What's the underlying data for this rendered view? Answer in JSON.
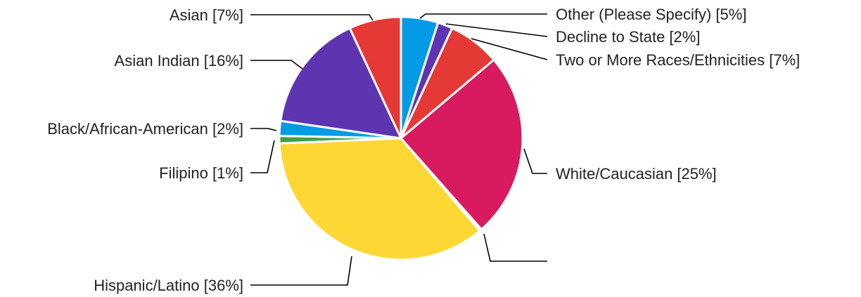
{
  "chart_data": {
    "type": "pie",
    "title": "",
    "slices": [
      {
        "label": "Other (Please Specify) [5%]",
        "value": 5,
        "color": "#039BE5"
      },
      {
        "label": "Decline to State [2%]",
        "value": 2,
        "color": "#5E35B1"
      },
      {
        "label": "Two or More Races/Ethnicities [7%]",
        "value": 7,
        "color": "#E53935"
      },
      {
        "label": "White/Caucasian [25%]",
        "value": 25,
        "color": "#D81B60"
      },
      {
        "label": "",
        "value": 0.3,
        "color": "#D81B60"
      },
      {
        "label": "Hispanic/Latino [36%]",
        "value": 36,
        "color": "#FDD835"
      },
      {
        "label": "Filipino [1%]",
        "value": 1,
        "color": "#43A047"
      },
      {
        "label": "Black/African-American [2%]",
        "value": 2,
        "color": "#039BE5"
      },
      {
        "label": "Asian Indian [16%]",
        "value": 16,
        "color": "#5E35B1"
      },
      {
        "label": "Asian [7%]",
        "value": 7,
        "color": "#E53935"
      }
    ]
  }
}
